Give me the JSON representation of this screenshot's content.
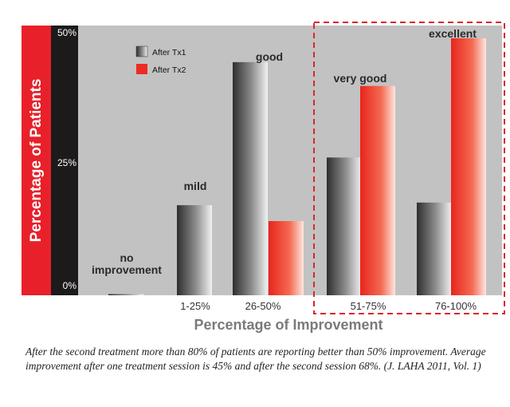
{
  "chart_data": {
    "type": "bar",
    "categories": [
      "",
      "1-25%",
      "26-50%",
      "51-75%",
      "76-100%"
    ],
    "category_annotations": [
      "no improvement",
      "mild",
      "good",
      "very good",
      "excellent"
    ],
    "series": [
      {
        "name": "After Tx1",
        "values": [
          0.2,
          17,
          44,
          26,
          17.5
        ],
        "color": "#8a8a8a"
      },
      {
        "name": "After Tx2",
        "values": [
          0,
          0,
          14,
          39.5,
          48.5
        ],
        "color": "#ee2a22"
      }
    ],
    "xlabel": "Percentage of Improvement",
    "ylabel": "Percentage of Patients",
    "yticks": [
      "0%",
      "25%",
      "50%"
    ],
    "ylim": [
      0,
      50
    ],
    "legend_position": "top-left",
    "highlight": "dashed red box around 51-75% and 76-100%",
    "colors": {
      "plot_bg": "#c2c2c2",
      "ylabel_bg": "#e8202a",
      "axis_bar": "#1c1a1a",
      "highlight": "#d9262c"
    }
  },
  "caption": "After the second treatment more than 80% of patients are reporting better than 50% improvement. Average improvement after one treatment session is 45% and after the second session 68%. (J. LAHA 2011, Vol. 1)"
}
